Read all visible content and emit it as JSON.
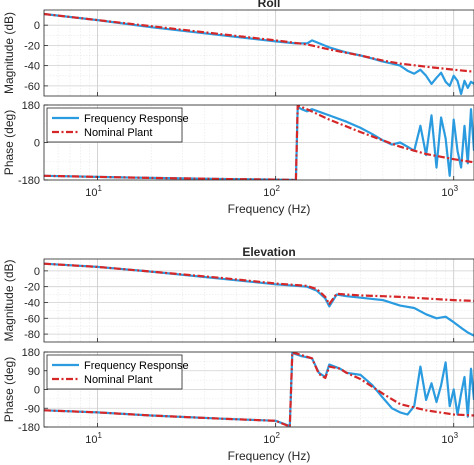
{
  "chart_data": [
    {
      "type": "line",
      "title": "Roll",
      "xlabel": "",
      "ylabel": "Magnitude (dB)",
      "xscale": "log",
      "xlim": [
        5,
        1300
      ],
      "ylim": [
        -70,
        15
      ],
      "yticks": [
        0,
        -20,
        -40,
        -60
      ],
      "xticks": [
        10,
        100,
        1000
      ],
      "xtick_labels": [],
      "grid": true,
      "series": [
        {
          "name": "Frequency Response",
          "color": "#2b9be0",
          "x": [
            5,
            10,
            20,
            50,
            100,
            130,
            150,
            160,
            200,
            250,
            300,
            350,
            400,
            450,
            500,
            550,
            600,
            650,
            700,
            750,
            800,
            850,
            900,
            950,
            1000,
            1050,
            1100,
            1150,
            1200,
            1250,
            1300
          ],
          "y": [
            11,
            5,
            -2,
            -10,
            -16,
            -18,
            -18,
            -15,
            -22,
            -27,
            -30,
            -33,
            -36,
            -38,
            -40,
            -45,
            -48,
            -44,
            -50,
            -58,
            -52,
            -47,
            -56,
            -60,
            -50,
            -55,
            -68,
            -55,
            -62,
            -56,
            -58
          ]
        },
        {
          "name": "Nominal Plant",
          "color": "#d62728",
          "x": [
            5,
            10,
            20,
            50,
            100,
            150,
            200,
            300,
            400,
            500,
            700,
            1000,
            1300
          ],
          "y": [
            11,
            5,
            -1,
            -9,
            -15,
            -19,
            -24,
            -30,
            -35,
            -38,
            -41,
            -44,
            -46
          ]
        }
      ]
    },
    {
      "type": "line",
      "title": "",
      "xlabel": "Frequency  (Hz)",
      "ylabel": "Phase (deg)",
      "xscale": "log",
      "xlim": [
        5,
        1300
      ],
      "ylim": [
        -180,
        180
      ],
      "yticks": [
        180,
        0,
        -180
      ],
      "xticks": [
        10,
        100,
        1000
      ],
      "xtick_labels": [
        "10^1",
        "10^2",
        "10^3"
      ],
      "grid": true,
      "legend": "top-left",
      "series": [
        {
          "name": "Frequency Response",
          "color": "#2b9be0",
          "x": [
            5,
            10,
            20,
            50,
            100,
            130,
            133,
            140,
            150,
            160,
            200,
            250,
            300,
            350,
            400,
            450,
            500,
            550,
            600,
            650,
            700,
            750,
            800,
            850,
            900,
            950,
            1000,
            1050,
            1100,
            1150,
            1200,
            1250,
            1300
          ],
          "y": [
            -160,
            -165,
            -170,
            -175,
            -178,
            -180,
            170,
            160,
            150,
            160,
            130,
            100,
            70,
            40,
            10,
            -10,
            0,
            -20,
            -40,
            80,
            -60,
            130,
            -120,
            120,
            20,
            -160,
            110,
            -40,
            -120,
            80,
            -100,
            160,
            -40
          ]
        },
        {
          "name": "Nominal Plant",
          "color": "#d62728",
          "x": [
            5,
            10,
            20,
            50,
            100,
            130,
            133,
            150,
            200,
            300,
            400,
            500,
            700,
            1000,
            1300
          ],
          "y": [
            -160,
            -165,
            -170,
            -175,
            -178,
            -180,
            178,
            160,
            110,
            50,
            10,
            -20,
            -55,
            -80,
            -95
          ]
        }
      ]
    },
    {
      "type": "line",
      "title": "Elevation",
      "xlabel": "",
      "ylabel": "Magnitude (dB)",
      "xscale": "log",
      "xlim": [
        5,
        1300
      ],
      "ylim": [
        -90,
        15
      ],
      "yticks": [
        0,
        -20,
        -40,
        -60,
        -80
      ],
      "xticks": [
        10,
        100,
        1000
      ],
      "xtick_labels": [],
      "grid": true,
      "series": [
        {
          "name": "Frequency Response",
          "color": "#2b9be0",
          "x": [
            5,
            10,
            20,
            50,
            100,
            150,
            170,
            180,
            190,
            200,
            220,
            250,
            300,
            400,
            500,
            600,
            700,
            800,
            900,
            1000,
            1100,
            1200,
            1300
          ],
          "y": [
            9,
            5,
            -1,
            -10,
            -17,
            -20,
            -25,
            -30,
            -35,
            -45,
            -30,
            -32,
            -34,
            -37,
            -44,
            -47,
            -55,
            -60,
            -58,
            -65,
            -72,
            -78,
            -82
          ]
        },
        {
          "name": "Nominal Plant",
          "color": "#d62728",
          "x": [
            5,
            10,
            20,
            50,
            100,
            150,
            170,
            180,
            190,
            200,
            220,
            250,
            300,
            400,
            500,
            700,
            1000,
            1300
          ],
          "y": [
            9,
            5,
            -1,
            -9,
            -16,
            -19,
            -23,
            -28,
            -33,
            -42,
            -29,
            -30,
            -31,
            -32,
            -33,
            -35,
            -37,
            -38
          ]
        }
      ]
    },
    {
      "type": "line",
      "title": "",
      "xlabel": "Frequency  (Hz)",
      "ylabel": "Phase (deg)",
      "xscale": "log",
      "xlim": [
        5,
        1300
      ],
      "ylim": [
        -180,
        180
      ],
      "yticks": [
        180,
        90,
        0,
        -90,
        -180
      ],
      "xticks": [
        10,
        100,
        1000
      ],
      "xtick_labels": [
        "10^1",
        "10^2",
        "10^3"
      ],
      "grid": true,
      "legend": "top-left",
      "series": [
        {
          "name": "Frequency Response",
          "color": "#2b9be0",
          "x": [
            5,
            10,
            20,
            50,
            100,
            120,
            124,
            140,
            160,
            175,
            190,
            200,
            230,
            250,
            300,
            350,
            400,
            450,
            500,
            550,
            600,
            650,
            700,
            750,
            800,
            850,
            900,
            950,
            1000,
            1050,
            1100,
            1150,
            1200,
            1250,
            1300
          ],
          "y": [
            -100,
            -110,
            -125,
            -140,
            -150,
            -175,
            175,
            160,
            150,
            80,
            60,
            120,
            100,
            80,
            70,
            20,
            -40,
            -90,
            -110,
            -120,
            -80,
            110,
            -50,
            30,
            -60,
            20,
            130,
            -80,
            0,
            -120,
            -20,
            60,
            -130,
            100,
            -50
          ]
        },
        {
          "name": "Nominal Plant",
          "color": "#d62728",
          "x": [
            5,
            10,
            20,
            50,
            100,
            120,
            124,
            140,
            160,
            175,
            190,
            200,
            230,
            250,
            300,
            400,
            500,
            700,
            1000,
            1300
          ],
          "y": [
            -100,
            -110,
            -125,
            -140,
            -150,
            -178,
            178,
            165,
            150,
            75,
            55,
            110,
            100,
            80,
            50,
            -20,
            -70,
            -100,
            -120,
            -125
          ]
        }
      ]
    }
  ]
}
